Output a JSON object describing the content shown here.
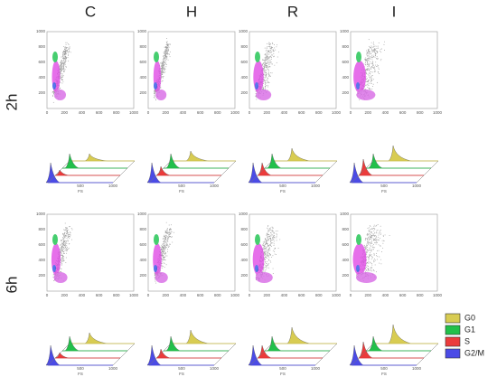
{
  "columns": [
    "C",
    "H",
    "R",
    "I"
  ],
  "rows": [
    "2h",
    "6h"
  ],
  "scatter": {
    "xticks": [
      "0",
      "200",
      "400",
      "600",
      "800",
      "1000"
    ],
    "yticks": [
      "200",
      "400",
      "600",
      "800",
      "1000"
    ]
  },
  "histogram": {
    "xticks": [
      "500",
      "1000"
    ],
    "xlabel": "FS"
  },
  "legend": [
    {
      "label": "G0",
      "color": "#d8cc52"
    },
    {
      "label": "G1",
      "color": "#22c04a"
    },
    {
      "label": "S",
      "color": "#ec3b3b"
    },
    {
      "label": "G2/M",
      "color": "#4b4be6"
    }
  ]
}
